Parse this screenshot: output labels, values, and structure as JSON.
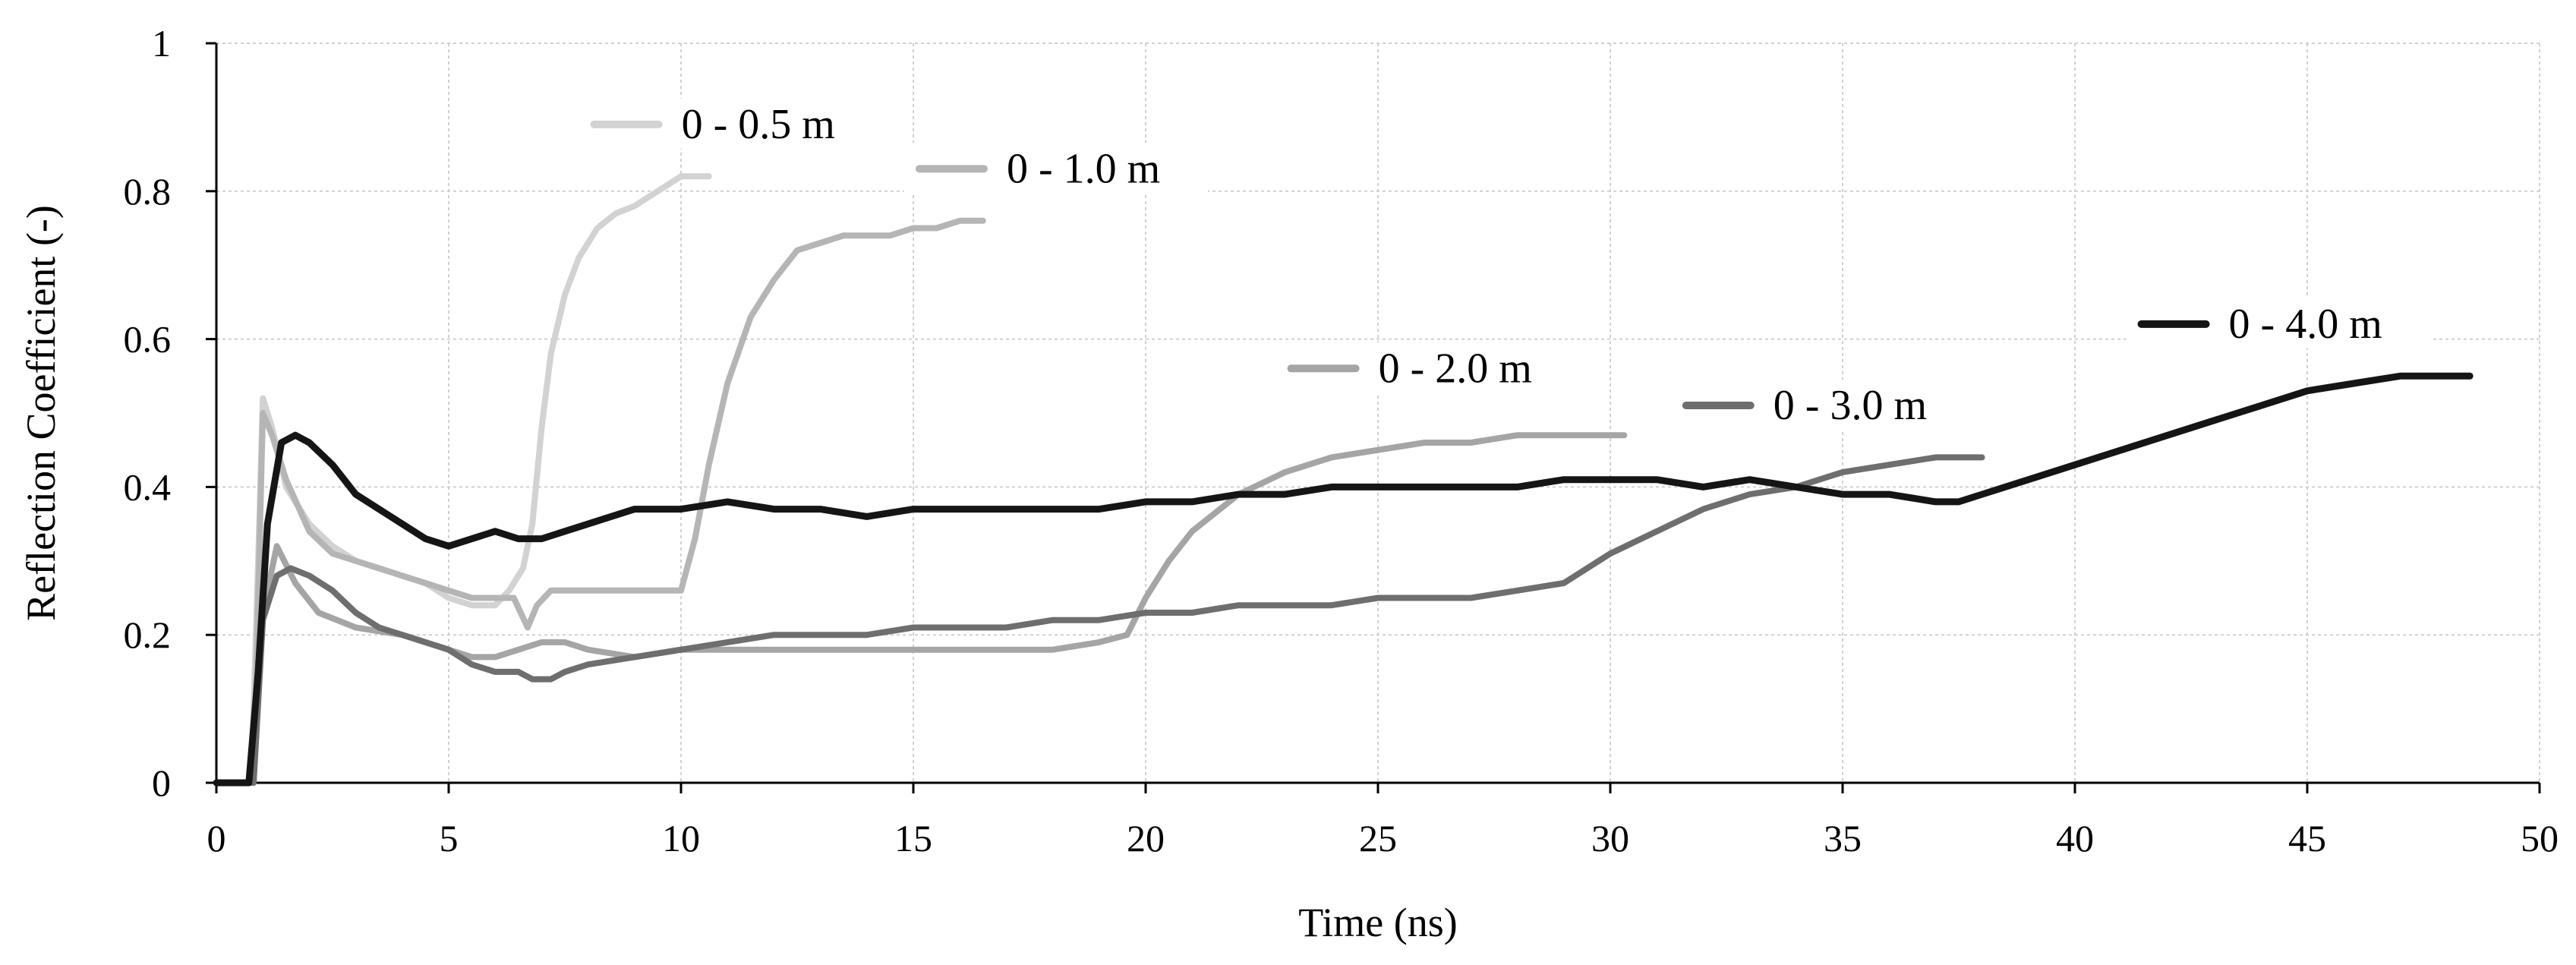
{
  "chart_data": {
    "type": "line",
    "title": "",
    "xlabel": "Time (ns)",
    "ylabel": "Reflection Coefficient (-)",
    "xlim": [
      0,
      50
    ],
    "ylim": [
      0,
      1
    ],
    "x_ticks": [
      0,
      5,
      10,
      15,
      20,
      25,
      30,
      35,
      40,
      45,
      50
    ],
    "y_ticks": [
      0,
      0.2,
      0.4,
      0.6,
      0.8,
      1
    ],
    "x_tick_labels": [
      "0",
      "5",
      "10",
      "15",
      "20",
      "25",
      "30",
      "35",
      "40",
      "45",
      "50"
    ],
    "y_tick_labels": [
      "0",
      "0.2",
      "0.4",
      "0.6",
      "0.8",
      "1"
    ],
    "grid": true,
    "series": [
      {
        "name": "0 - 0.5 m",
        "color": "#d2d2d2",
        "legend_at": [
          10.5,
          0.88
        ],
        "x": [
          0,
          0.5,
          0.75,
          0.9,
          1.0,
          1.2,
          1.5,
          2,
          2.5,
          3,
          3.5,
          4,
          4.5,
          5,
          5.5,
          6,
          6.3,
          6.6,
          6.8,
          7.0,
          7.2,
          7.5,
          7.8,
          8.2,
          8.6,
          9,
          9.5,
          10,
          10.6
        ],
        "y": [
          0,
          0,
          0,
          0.3,
          0.52,
          0.48,
          0.4,
          0.35,
          0.32,
          0.3,
          0.29,
          0.28,
          0.27,
          0.25,
          0.24,
          0.24,
          0.26,
          0.29,
          0.35,
          0.48,
          0.58,
          0.66,
          0.71,
          0.75,
          0.77,
          0.78,
          0.8,
          0.82,
          0.82
        ]
      },
      {
        "name": "0 - 1.0 m",
        "color": "#b5b5b5",
        "legend_at": [
          17.5,
          0.82
        ],
        "x": [
          0,
          0.5,
          0.8,
          1.0,
          1.2,
          1.5,
          2,
          2.5,
          3,
          3.5,
          4,
          4.5,
          5,
          5.5,
          6,
          6.4,
          6.7,
          6.9,
          7.2,
          7.6,
          8,
          8.5,
          9,
          9.5,
          10,
          10.3,
          10.6,
          11,
          11.5,
          12,
          12.5,
          13,
          13.5,
          14,
          14.5,
          15,
          15.5,
          16,
          16.5
        ],
        "y": [
          0,
          0,
          0,
          0.5,
          0.47,
          0.41,
          0.34,
          0.31,
          0.3,
          0.29,
          0.28,
          0.27,
          0.26,
          0.25,
          0.25,
          0.25,
          0.21,
          0.24,
          0.26,
          0.26,
          0.26,
          0.26,
          0.26,
          0.26,
          0.26,
          0.33,
          0.43,
          0.54,
          0.63,
          0.68,
          0.72,
          0.73,
          0.74,
          0.74,
          0.74,
          0.75,
          0.75,
          0.76,
          0.76
        ]
      },
      {
        "name": "0 - 2.0 m",
        "color": "#a5a5a5",
        "legend_at": [
          25.5,
          0.55
        ],
        "x": [
          0,
          0.5,
          0.8,
          1.0,
          1.3,
          1.7,
          2.2,
          3,
          4,
          5,
          5.5,
          6,
          6.5,
          7,
          7.5,
          8,
          9,
          10,
          11,
          12,
          13,
          14,
          15,
          16,
          17,
          18,
          19,
          19.6,
          20,
          20.5,
          21,
          22,
          23,
          24,
          25,
          26,
          27,
          28,
          29,
          30,
          30.3
        ],
        "y": [
          0,
          0,
          0,
          0.23,
          0.32,
          0.27,
          0.23,
          0.21,
          0.2,
          0.18,
          0.17,
          0.17,
          0.18,
          0.19,
          0.19,
          0.18,
          0.17,
          0.18,
          0.18,
          0.18,
          0.18,
          0.18,
          0.18,
          0.18,
          0.18,
          0.18,
          0.19,
          0.2,
          0.25,
          0.3,
          0.34,
          0.39,
          0.42,
          0.44,
          0.45,
          0.46,
          0.46,
          0.47,
          0.47,
          0.47,
          0.47
        ]
      },
      {
        "name": "0 - 3.0 m",
        "color": "#6e6e6e",
        "legend_at": [
          34.0,
          0.5
        ],
        "x": [
          0,
          0.5,
          0.8,
          1.0,
          1.3,
          1.6,
          2,
          2.5,
          3,
          3.5,
          4,
          4.5,
          5,
          5.5,
          6,
          6.5,
          6.8,
          7.2,
          7.5,
          8,
          9,
          10,
          11,
          12,
          13,
          14,
          15,
          16,
          17,
          18,
          19,
          20,
          21,
          22,
          23,
          24,
          25,
          26,
          27,
          28,
          29,
          30,
          31,
          32,
          33,
          34,
          35,
          36,
          37,
          38
        ],
        "y": [
          0,
          0,
          0,
          0.22,
          0.28,
          0.29,
          0.28,
          0.26,
          0.23,
          0.21,
          0.2,
          0.19,
          0.18,
          0.16,
          0.15,
          0.15,
          0.14,
          0.14,
          0.15,
          0.16,
          0.17,
          0.18,
          0.19,
          0.2,
          0.2,
          0.2,
          0.21,
          0.21,
          0.21,
          0.22,
          0.22,
          0.23,
          0.23,
          0.24,
          0.24,
          0.24,
          0.25,
          0.25,
          0.25,
          0.26,
          0.27,
          0.31,
          0.34,
          0.37,
          0.39,
          0.4,
          0.42,
          0.43,
          0.44,
          0.44
        ]
      },
      {
        "name": "0 - 4.0 m",
        "color": "#151515",
        "legend_at": [
          43.8,
          0.61
        ],
        "x": [
          0,
          0.5,
          0.7,
          0.9,
          1.1,
          1.4,
          1.7,
          2,
          2.5,
          3,
          3.5,
          4,
          4.5,
          5,
          5.5,
          6,
          6.5,
          7,
          7.5,
          8,
          9,
          10,
          11,
          12,
          13,
          14,
          15,
          16,
          17,
          18,
          19,
          20,
          21,
          22,
          23,
          24,
          25,
          26,
          27,
          28,
          29,
          30,
          31,
          32,
          33,
          34,
          35,
          36,
          37,
          37.5,
          38,
          39,
          40,
          41,
          42,
          43,
          44,
          45,
          46,
          47,
          48,
          48.5
        ],
        "y": [
          0,
          0,
          0,
          0.15,
          0.35,
          0.46,
          0.47,
          0.46,
          0.43,
          0.39,
          0.37,
          0.35,
          0.33,
          0.32,
          0.33,
          0.34,
          0.33,
          0.33,
          0.34,
          0.35,
          0.37,
          0.37,
          0.38,
          0.37,
          0.37,
          0.36,
          0.37,
          0.37,
          0.37,
          0.37,
          0.37,
          0.38,
          0.38,
          0.39,
          0.39,
          0.4,
          0.4,
          0.4,
          0.4,
          0.4,
          0.41,
          0.41,
          0.41,
          0.4,
          0.41,
          0.4,
          0.39,
          0.39,
          0.38,
          0.38,
          0.39,
          0.41,
          0.43,
          0.45,
          0.47,
          0.49,
          0.51,
          0.53,
          0.54,
          0.55,
          0.55,
          0.55
        ]
      }
    ]
  }
}
